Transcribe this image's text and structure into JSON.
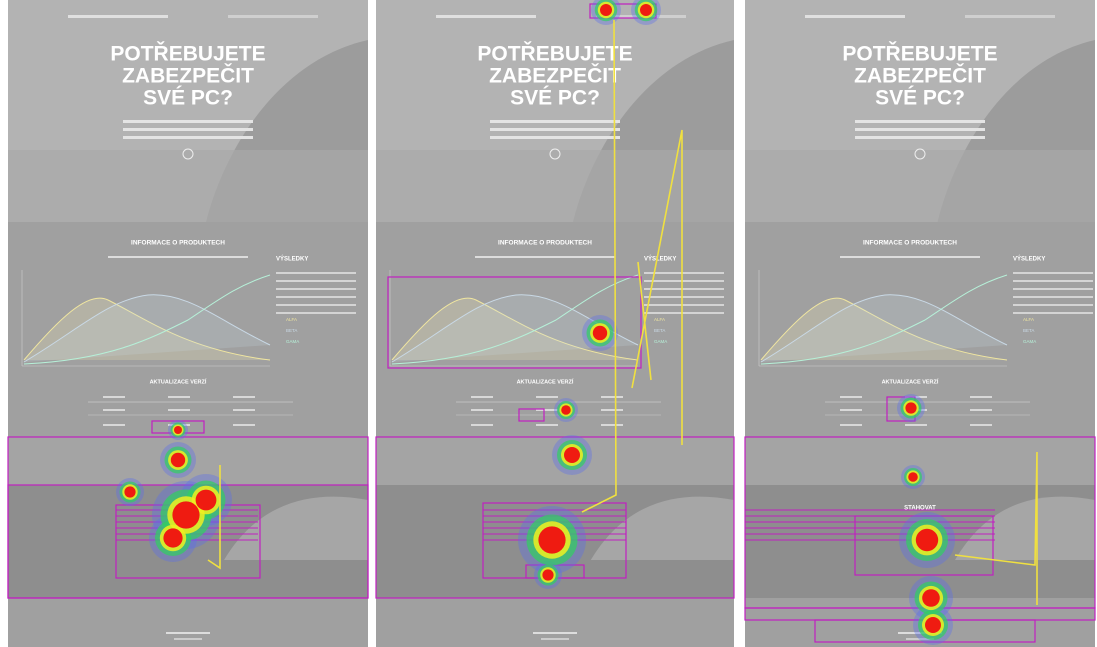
{
  "page": {
    "hero_title": [
      "POTŘEBUJETE",
      "ZABEZPEČIT",
      "SVÉ PC?"
    ],
    "info_heading": "INFORMACE O PRODUKTECH",
    "results_heading": "VÝSLEDKY",
    "legend": [
      "ALFA",
      "BETA",
      "GAMA"
    ],
    "updates_heading": "AKTUALIZACE VERZÍ",
    "download_heading": "STAHOVAT"
  }
}
